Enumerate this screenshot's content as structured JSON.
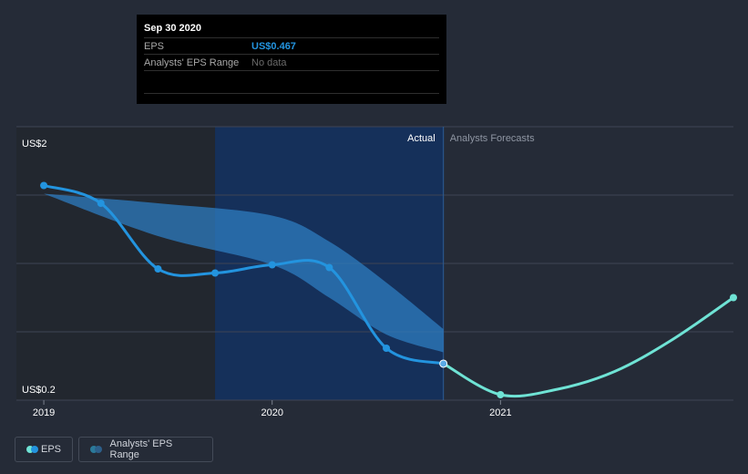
{
  "tooltip": {
    "date": "Sep 30 2020",
    "eps_label": "EPS",
    "eps_value": "US$0.467",
    "range_label": "Analysts' EPS Range",
    "range_value": "No data"
  },
  "legend": {
    "eps_label": "EPS",
    "range_label": "Analysts' EPS Range"
  },
  "colors": {
    "background": "#252b37",
    "eps_line": "#2394df",
    "forecast_line": "#6fe3d5",
    "range_fill": "#2d7cc0",
    "highlight": "#15305a",
    "grid": "#3e4554"
  },
  "chart_data": {
    "type": "line",
    "ylim": [
      0.2,
      2.2
    ],
    "ytick_labels": [
      "US$2",
      "US$0.2"
    ],
    "ytick_values": [
      2.0,
      0.2
    ],
    "xtick_labels": [
      "2019",
      "2020",
      "2021"
    ],
    "xtick_values": [
      2019.0,
      2020.0,
      2021.0
    ],
    "xlim": [
      2018.88,
      2022.02
    ],
    "shaded_period": [
      2019.75,
      2020.75
    ],
    "divider_x": 2020.75,
    "region_labels": {
      "actual": "Actual",
      "forecast": "Analysts Forecasts"
    },
    "series": [
      {
        "name": "EPS",
        "x": [
          2019.0,
          2019.25,
          2019.5,
          2019.75,
          2020.0,
          2020.25,
          2020.5,
          2020.75
        ],
        "values": [
          1.77,
          1.64,
          1.16,
          1.13,
          1.19,
          1.17,
          0.58,
          0.467
        ]
      },
      {
        "name": "Analysts Forecasts",
        "x": [
          2020.75,
          2021.0,
          2021.25,
          2021.5,
          2021.75,
          2022.02
        ],
        "values": [
          0.467,
          0.24,
          0.28,
          0.41,
          0.64,
          0.95
        ]
      }
    ],
    "range_band": {
      "name": "Analysts' EPS Range",
      "x": [
        2019.0,
        2019.5,
        2020.0,
        2020.25,
        2020.5,
        2020.75
      ],
      "upper": [
        1.71,
        1.64,
        1.55,
        1.36,
        1.06,
        0.72
      ],
      "lower": [
        1.71,
        1.4,
        1.19,
        0.95,
        0.68,
        0.55
      ]
    }
  }
}
